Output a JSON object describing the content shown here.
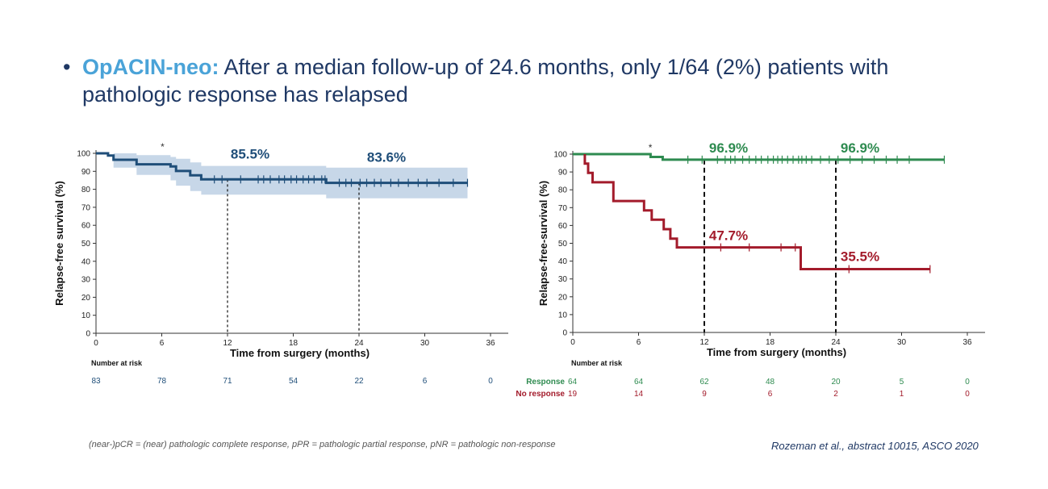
{
  "headline": {
    "bullet": "•",
    "highlight": "OpACIN-neo:",
    "text": " After a median follow-up of 24.6 months, only 1/64 (2%) patients with pathologic response has relapsed"
  },
  "colors": {
    "overall": "#1f4e79",
    "ci_band": "#c7d7e8",
    "response": "#2e8b50",
    "no_response": "#a31b2b",
    "headline": "#1f3864",
    "highlight": "#4aa3d8"
  },
  "chart_data": [
    {
      "type": "line",
      "xlabel": "Time from surgery (months)",
      "ylabel": "Relapse-free survival (%)",
      "xlim": [
        0,
        36
      ],
      "ylim": [
        0,
        100
      ],
      "xticks": [
        0,
        6,
        12,
        18,
        24,
        30,
        36
      ],
      "yticks": [
        0,
        10,
        20,
        30,
        40,
        50,
        60,
        70,
        80,
        90,
        100
      ],
      "asterisk": {
        "label": "*",
        "x": 6
      },
      "series": [
        {
          "color": "#1f4e79",
          "step": [
            [
              0,
              100
            ],
            [
              1.1,
              100
            ],
            [
              1.1,
              98.8
            ],
            [
              1.6,
              98.8
            ],
            [
              1.6,
              96.4
            ],
            [
              3.7,
              96.4
            ],
            [
              3.7,
              93.9
            ],
            [
              6.8,
              93.9
            ],
            [
              6.8,
              92.7
            ],
            [
              7.3,
              92.7
            ],
            [
              7.3,
              90.2
            ],
            [
              8.6,
              90.2
            ],
            [
              8.6,
              87.8
            ],
            [
              9.6,
              87.8
            ],
            [
              9.6,
              85.5
            ],
            [
              21.0,
              85.5
            ],
            [
              21.0,
              83.6
            ],
            [
              33.9,
              83.6
            ]
          ],
          "ci_upper": [
            [
              0,
              100
            ],
            [
              1.6,
              100
            ],
            [
              3.7,
              99
            ],
            [
              6.8,
              98
            ],
            [
              7.3,
              97
            ],
            [
              8.6,
              95
            ],
            [
              9.6,
              93
            ],
            [
              21.0,
              92
            ],
            [
              33.9,
              92
            ]
          ],
          "ci_lower": [
            [
              0,
              100
            ],
            [
              1.6,
              92
            ],
            [
              3.7,
              88
            ],
            [
              6.8,
              85
            ],
            [
              7.3,
              82
            ],
            [
              8.6,
              79
            ],
            [
              9.6,
              77
            ],
            [
              21.0,
              75
            ],
            [
              33.9,
              75
            ]
          ],
          "censors": [
            10.8,
            11.5,
            13.2,
            14.8,
            15.3,
            15.9,
            16.7,
            17.2,
            17.8,
            18.3,
            18.9,
            19.4,
            19.9,
            20.6,
            20.9,
            22.2,
            22.8,
            23.3,
            24.1,
            24.7,
            25.4,
            26.0,
            26.9,
            27.6,
            28.5,
            29.4,
            30.2,
            31.3,
            32.6,
            33.9
          ]
        }
      ],
      "annotations": [
        {
          "label": "85.5%",
          "x": 12,
          "y": 85.5
        },
        {
          "label": "83.6%",
          "x": 24,
          "y": 83.6
        }
      ],
      "risk_table": {
        "title": "Number at risk",
        "rows": [
          {
            "values": [
              "83",
              "78",
              "71",
              "54",
              "22",
              "6",
              "0"
            ]
          }
        ]
      }
    },
    {
      "type": "line",
      "xlabel": "Time from surgery (months)",
      "ylabel": "Relapse-free-survival (%)",
      "xlim": [
        0,
        36
      ],
      "ylim": [
        0,
        100
      ],
      "xticks": [
        0,
        6,
        12,
        18,
        24,
        30,
        36
      ],
      "yticks": [
        0,
        10,
        20,
        30,
        40,
        50,
        60,
        70,
        80,
        90,
        100
      ],
      "asterisk": {
        "label": "*",
        "x": 7
      },
      "series": [
        {
          "color": "#2e8b50",
          "step": [
            [
              0,
              100
            ],
            [
              7.1,
              100
            ],
            [
              7.1,
              98.4
            ],
            [
              8.2,
              98.4
            ],
            [
              8.2,
              96.9
            ],
            [
              33.9,
              96.9
            ]
          ],
          "censors": [
            10.5,
            11.8,
            13.2,
            13.9,
            14.4,
            14.8,
            15.5,
            16.1,
            16.7,
            17.2,
            17.8,
            18.3,
            18.7,
            19.1,
            19.6,
            20.1,
            20.6,
            20.9,
            21.3,
            21.8,
            22.6,
            23.4,
            24.2,
            25.3,
            26.4,
            27.5,
            28.6,
            29.6,
            30.7,
            33.9
          ]
        },
        {
          "color": "#a31b2b",
          "step": [
            [
              1.1,
              100
            ],
            [
              1.1,
              94.7
            ],
            [
              1.4,
              94.7
            ],
            [
              1.4,
              89.5
            ],
            [
              1.8,
              89.5
            ],
            [
              1.8,
              84.2
            ],
            [
              3.7,
              84.2
            ],
            [
              3.7,
              73.7
            ],
            [
              6.5,
              73.7
            ],
            [
              6.5,
              68.4
            ],
            [
              7.2,
              68.4
            ],
            [
              7.2,
              63.2
            ],
            [
              8.3,
              63.2
            ],
            [
              8.3,
              57.9
            ],
            [
              8.9,
              57.9
            ],
            [
              8.9,
              52.6
            ],
            [
              9.5,
              52.6
            ],
            [
              9.5,
              47.7
            ],
            [
              20.8,
              47.7
            ],
            [
              20.8,
              35.5
            ],
            [
              32.6,
              35.5
            ]
          ],
          "censors": [
            13.5,
            16.1,
            19.0,
            20.3,
            25.2,
            32.6
          ]
        }
      ],
      "annotations": [
        {
          "label": "96.9%",
          "x": 12,
          "y": 96.9
        },
        {
          "label": "96.9%",
          "x": 24,
          "y": 96.9
        },
        {
          "label": "47.7%",
          "x": 12,
          "y": 47.7
        },
        {
          "label": "35.5%",
          "x": 24,
          "y": 35.5
        }
      ],
      "risk_table": {
        "title": "Number at risk",
        "rows": [
          {
            "label": "Response",
            "values": [
              "64",
              "64",
              "62",
              "48",
              "20",
              "5",
              "0"
            ]
          },
          {
            "label": "No response",
            "values": [
              "19",
              "14",
              "9",
              "6",
              "2",
              "1",
              "0"
            ]
          }
        ]
      }
    }
  ],
  "footnote": "(near-)pCR = (near) pathologic complete response, pPR = pathologic partial response, pNR = pathologic non-response",
  "citation": "Rozeman et al., abstract 10015, ASCO 2020"
}
